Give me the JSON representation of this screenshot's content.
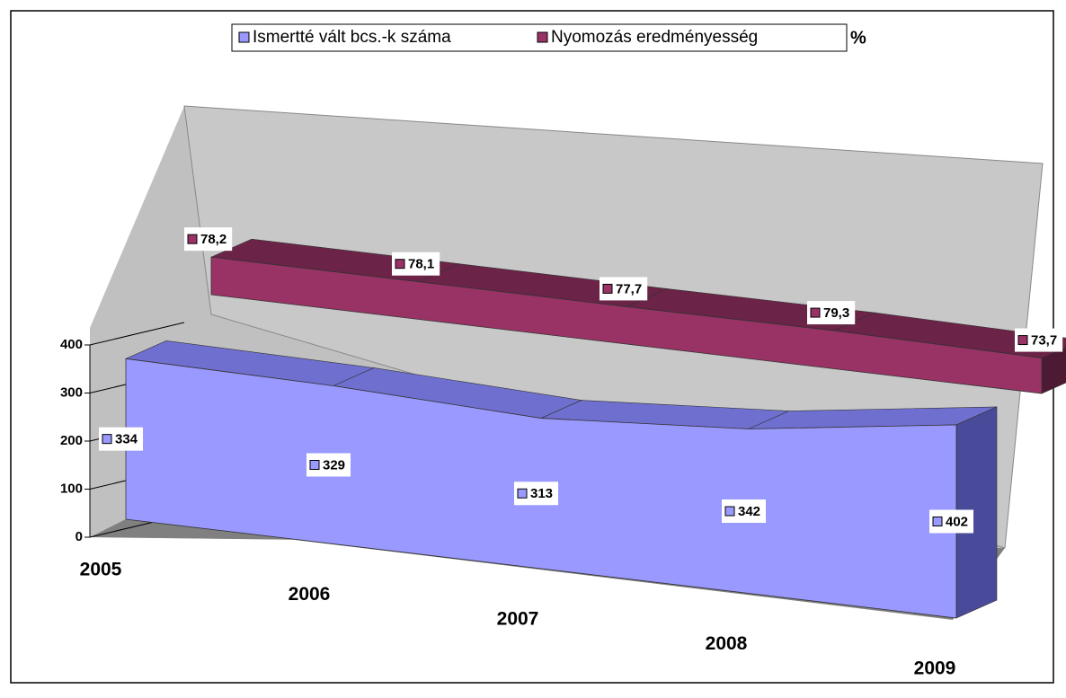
{
  "chart_data": {
    "type": "area3d",
    "categories": [
      "2005",
      "2006",
      "2007",
      "2008",
      "2009"
    ],
    "series": [
      {
        "name": "Ismertté vált bcs.-k száma",
        "color": "#9999ff",
        "values": [
          334,
          329,
          313,
          342,
          402
        ]
      },
      {
        "name": "Nyomozás eredményesség",
        "color": "#993366",
        "values": [
          78.2,
          78.1,
          77.7,
          79.3,
          73.7
        ],
        "value_labels": [
          "78,2",
          "78,1",
          "77,7",
          "79,3",
          "73,7"
        ]
      }
    ],
    "legend_suffix": "%",
    "ylim": [
      0,
      400
    ],
    "yticks": [
      0,
      100,
      200,
      300,
      400
    ],
    "grid": true,
    "legend": "top"
  }
}
